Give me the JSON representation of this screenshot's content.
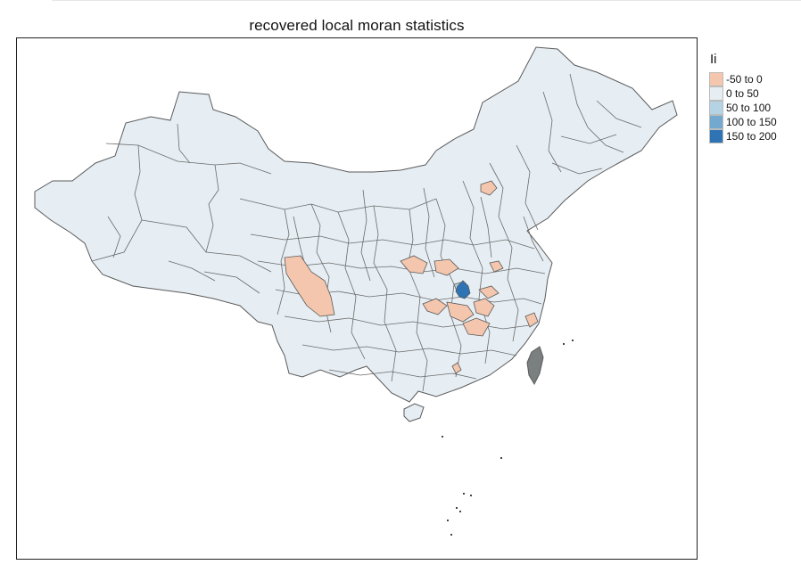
{
  "title": "recovered local moran statistics",
  "legend": {
    "title": "Ii",
    "items": [
      {
        "label": "-50 to 0",
        "color": "#f4c6ad"
      },
      {
        "label": "0 to 50",
        "color": "#e6eef4"
      },
      {
        "label": "50 to 100",
        "color": "#b4d4e6"
      },
      {
        "label": "100 to 150",
        "color": "#74a9cf"
      },
      {
        "label": "150 to 200",
        "color": "#2e74b5"
      }
    ]
  },
  "colors": {
    "base_region": "#e6eef4",
    "border": "#5a5a5a",
    "no_data": "#7a7f80"
  }
}
